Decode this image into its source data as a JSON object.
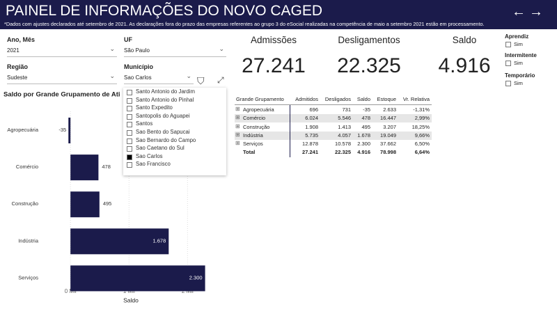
{
  "header": {
    "title": "PAINEL DE INFORMAÇÕES DO NOVO CAGED",
    "subtitle": "*Dados com ajustes declarados até setembro de 2021. As declarações fora do prazo das empresas referentes ao grupo 3 do eSocial realizadas na competência de maio a setembro 2021 estão em processamento."
  },
  "filters": {
    "period": {
      "label": "Ano, Mês",
      "value": "2021"
    },
    "region": {
      "label": "Região",
      "value": "Sudeste"
    },
    "state": {
      "label": "UF",
      "value": "São Paulo"
    },
    "city": {
      "label": "Município",
      "value": "Sao Carlos",
      "options": [
        "Santo Antonio do Jardim",
        "Santo Antonio do Pinhal",
        "Santo Expedito",
        "Santopolis do Aguapei",
        "Santos",
        "Sao Bento do Sapucai",
        "Sao Bernardo do Campo",
        "Sao Caetano do Sul",
        "Sao Carlos",
        "Sao Francisco"
      ],
      "selected": 8
    }
  },
  "kpis": [
    {
      "label": "Admissões",
      "value": "27.241"
    },
    {
      "label": "Desligamentos",
      "value": "22.325"
    },
    {
      "label": "Saldo",
      "value": "4.916"
    }
  ],
  "toggles": [
    {
      "label": "Aprendiz",
      "option": "Sim"
    },
    {
      "label": "Intermitente",
      "option": "Sim"
    },
    {
      "label": "Temporário",
      "option": "Sim"
    }
  ],
  "table": {
    "columns": [
      "Grande Grupamento",
      "Admitidos",
      "Desligados",
      "Saldo",
      "Estoque",
      "Vr. Relativa"
    ],
    "rows": [
      [
        "Agropecuária",
        "696",
        "731",
        "-35",
        "2.633",
        "-1,31%"
      ],
      [
        "Comércio",
        "6.024",
        "5.546",
        "478",
        "16.447",
        "2,99%"
      ],
      [
        "Construção",
        "1.908",
        "1.413",
        "495",
        "3.207",
        "18,25%"
      ],
      [
        "Indústria",
        "5.735",
        "4.057",
        "1.678",
        "19.049",
        "9,66%"
      ],
      [
        "Serviços",
        "12.878",
        "10.578",
        "2.300",
        "37.662",
        "6,50%"
      ]
    ],
    "total": [
      "Total",
      "27.241",
      "22.325",
      "4.916",
      "78.998",
      "6,64%"
    ]
  },
  "chart_data": {
    "type": "hbar",
    "title": "Saldo por Grande Grupamento de Ati",
    "categories": [
      "Agropecuária",
      "Comércio",
      "Construção",
      "Indústria",
      "Serviços"
    ],
    "values": [
      -35,
      478,
      495,
      1678,
      2300
    ],
    "value_labels": [
      "-35",
      "478",
      "495",
      "1.678",
      "2.300"
    ],
    "color": "#1b1b4b",
    "xlabel": "Saldo",
    "xlim": [
      -50,
      2400
    ],
    "xticks": [
      {
        "value": 0,
        "label": "0 Mil"
      },
      {
        "value": 1000,
        "label": "1 Mil"
      },
      {
        "value": 2000,
        "label": "2 Mil"
      }
    ]
  }
}
